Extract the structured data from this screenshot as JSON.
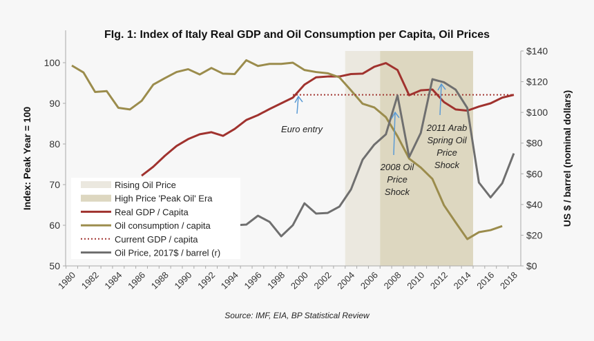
{
  "chart_data": {
    "type": "line",
    "title": "FIg. 1: Index of Italy Real GDP and Oil Consumption per Capita, Oil Prices",
    "ylabel": "Index: Peak Year = 100",
    "y2label": "US $ / barrel (nominal dollars)",
    "source": "Source: IMF, EIA, BP Statistical Review",
    "xlim": [
      1980,
      2018
    ],
    "ylim": [
      50,
      103
    ],
    "y2lim": [
      0,
      140
    ],
    "x_ticks": [
      "1980",
      "1982",
      "1984",
      "1986",
      "1988",
      "1990",
      "1992",
      "1994",
      "1996",
      "1998",
      "2000",
      "2002",
      "2004",
      "2006",
      "2008",
      "2010",
      "2012",
      "2014",
      "2016",
      "2018"
    ],
    "y_ticks": [
      "50",
      "60",
      "70",
      "80",
      "90",
      "100"
    ],
    "y2_ticks": [
      "$0",
      "$20",
      "$40",
      "$60",
      "$80",
      "$100",
      "$120",
      "$140"
    ],
    "grid": false,
    "legend_position": "bottom-left",
    "bands": [
      {
        "name": "Rising Oil Price",
        "from": 2003.5,
        "to": 2006.5,
        "color": "#ebe8df"
      },
      {
        "name": "High Price 'Peak Oil' Era",
        "from": 2006.5,
        "to": 2014.5,
        "color": "#ddd7c0"
      }
    ],
    "series": [
      {
        "name": "Real GDP / Capita",
        "axis": "left",
        "color": "#a0322e",
        "style": "solid",
        "x": [
          1986,
          1987,
          1988,
          1989,
          1990,
          1991,
          1992,
          1993,
          1994,
          1995,
          1996,
          1997,
          1998,
          1999,
          2000,
          2001,
          2002,
          2003,
          2004,
          2005,
          2006,
          2007,
          2008,
          2009,
          2010,
          2011,
          2012,
          2013,
          2014,
          2015,
          2016,
          2017,
          2018
        ],
        "values": [
          72.2,
          74.4,
          77.1,
          79.5,
          81.2,
          82.4,
          82.9,
          82.0,
          83.7,
          85.9,
          87.1,
          88.6,
          90.0,
          91.4,
          94.6,
          96.4,
          96.6,
          96.6,
          97.2,
          97.3,
          99.0,
          99.9,
          98.2,
          92.0,
          93.2,
          93.4,
          90.3,
          88.5,
          88.2,
          89.2,
          90.0,
          91.4,
          92.1
        ]
      },
      {
        "name": "Oil consumption / capita",
        "axis": "left",
        "color": "#9b8c4c",
        "style": "solid",
        "x": [
          1980,
          1981,
          1982,
          1983,
          1984,
          1985,
          1986,
          1987,
          1988,
          1989,
          1990,
          1991,
          1992,
          1993,
          1994,
          1995,
          1996,
          1997,
          1998,
          1999,
          2000,
          2001,
          2002,
          2003,
          2004,
          2005,
          2006,
          2007,
          2008,
          2009,
          2010,
          2011,
          2012,
          2013,
          2014,
          2015,
          2016,
          2017
        ],
        "values": [
          99.3,
          97.6,
          92.8,
          93.0,
          88.9,
          88.5,
          90.6,
          94.6,
          96.2,
          97.7,
          98.4,
          97.1,
          98.7,
          97.3,
          97.2,
          100.6,
          99.2,
          99.7,
          99.7,
          100.0,
          98.2,
          97.7,
          97.4,
          96.4,
          93.2,
          89.9,
          89.0,
          86.6,
          81.9,
          76.4,
          74.2,
          71.4,
          64.9,
          60.7,
          56.6,
          58.3,
          58.8,
          59.8
        ]
      },
      {
        "name": "Current GDP / capita",
        "axis": "left",
        "color": "#a0322e",
        "style": "dotted",
        "x": [
          1999,
          2018
        ],
        "values": [
          92.1,
          92.1
        ]
      },
      {
        "name": "Oil Price, 2017$ / barrel (r)",
        "axis": "right",
        "color": "#6f6f6f",
        "style": "solid",
        "x": [
          1994,
          1995,
          1996,
          1997,
          1998,
          1999,
          2000,
          2001,
          2002,
          2003,
          2004,
          2005,
          2006,
          2007,
          2008,
          2009,
          2010,
          2011,
          2012,
          2013,
          2014,
          2015,
          2016,
          2017,
          2018
        ],
        "values": [
          26.5,
          26.9,
          32.7,
          28.7,
          19.3,
          26.5,
          40.8,
          34.1,
          34.5,
          38.6,
          49.8,
          69.2,
          79.0,
          85.7,
          111.0,
          70.9,
          86.6,
          121.6,
          119.6,
          114.8,
          102.9,
          54.3,
          44.6,
          53.8,
          73.3
        ]
      }
    ],
    "annotations": [
      {
        "lines": [
          "Euro entry"
        ],
        "arrow_x": 1999.3,
        "arrow_value": 92
      },
      {
        "lines": [
          "2008 Oil",
          "Price",
          "Shock"
        ],
        "arrow_x": 2007.9,
        "arrow_value": 98
      },
      {
        "lines": [
          "2011 Arab",
          "Spring Oil",
          "Price",
          "Shock"
        ],
        "arrow_x": 2011.9,
        "arrow_value": 120
      }
    ]
  }
}
